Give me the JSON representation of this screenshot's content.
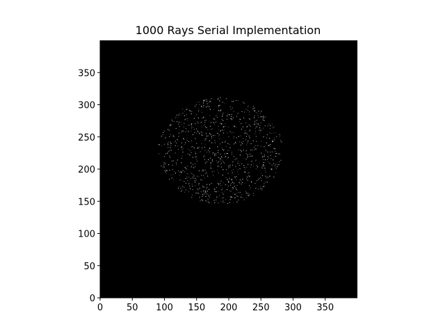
{
  "chart_data": {
    "type": "heatmap",
    "title": "1000 Rays Serial Implementation",
    "xlabel": "",
    "ylabel": "",
    "xlim": [
      0,
      400
    ],
    "ylim": [
      0,
      400
    ],
    "xticks": [
      0,
      50,
      100,
      150,
      200,
      250,
      300,
      350
    ],
    "yticks": [
      0,
      50,
      100,
      150,
      200,
      250,
      300,
      350
    ],
    "grid": false,
    "image_background": "#000000",
    "spot": {
      "center_x": 187,
      "center_y": 229,
      "radius_x": 97,
      "radius_y": 83,
      "point_count": 1000,
      "point_color": "#ffffff"
    }
  }
}
